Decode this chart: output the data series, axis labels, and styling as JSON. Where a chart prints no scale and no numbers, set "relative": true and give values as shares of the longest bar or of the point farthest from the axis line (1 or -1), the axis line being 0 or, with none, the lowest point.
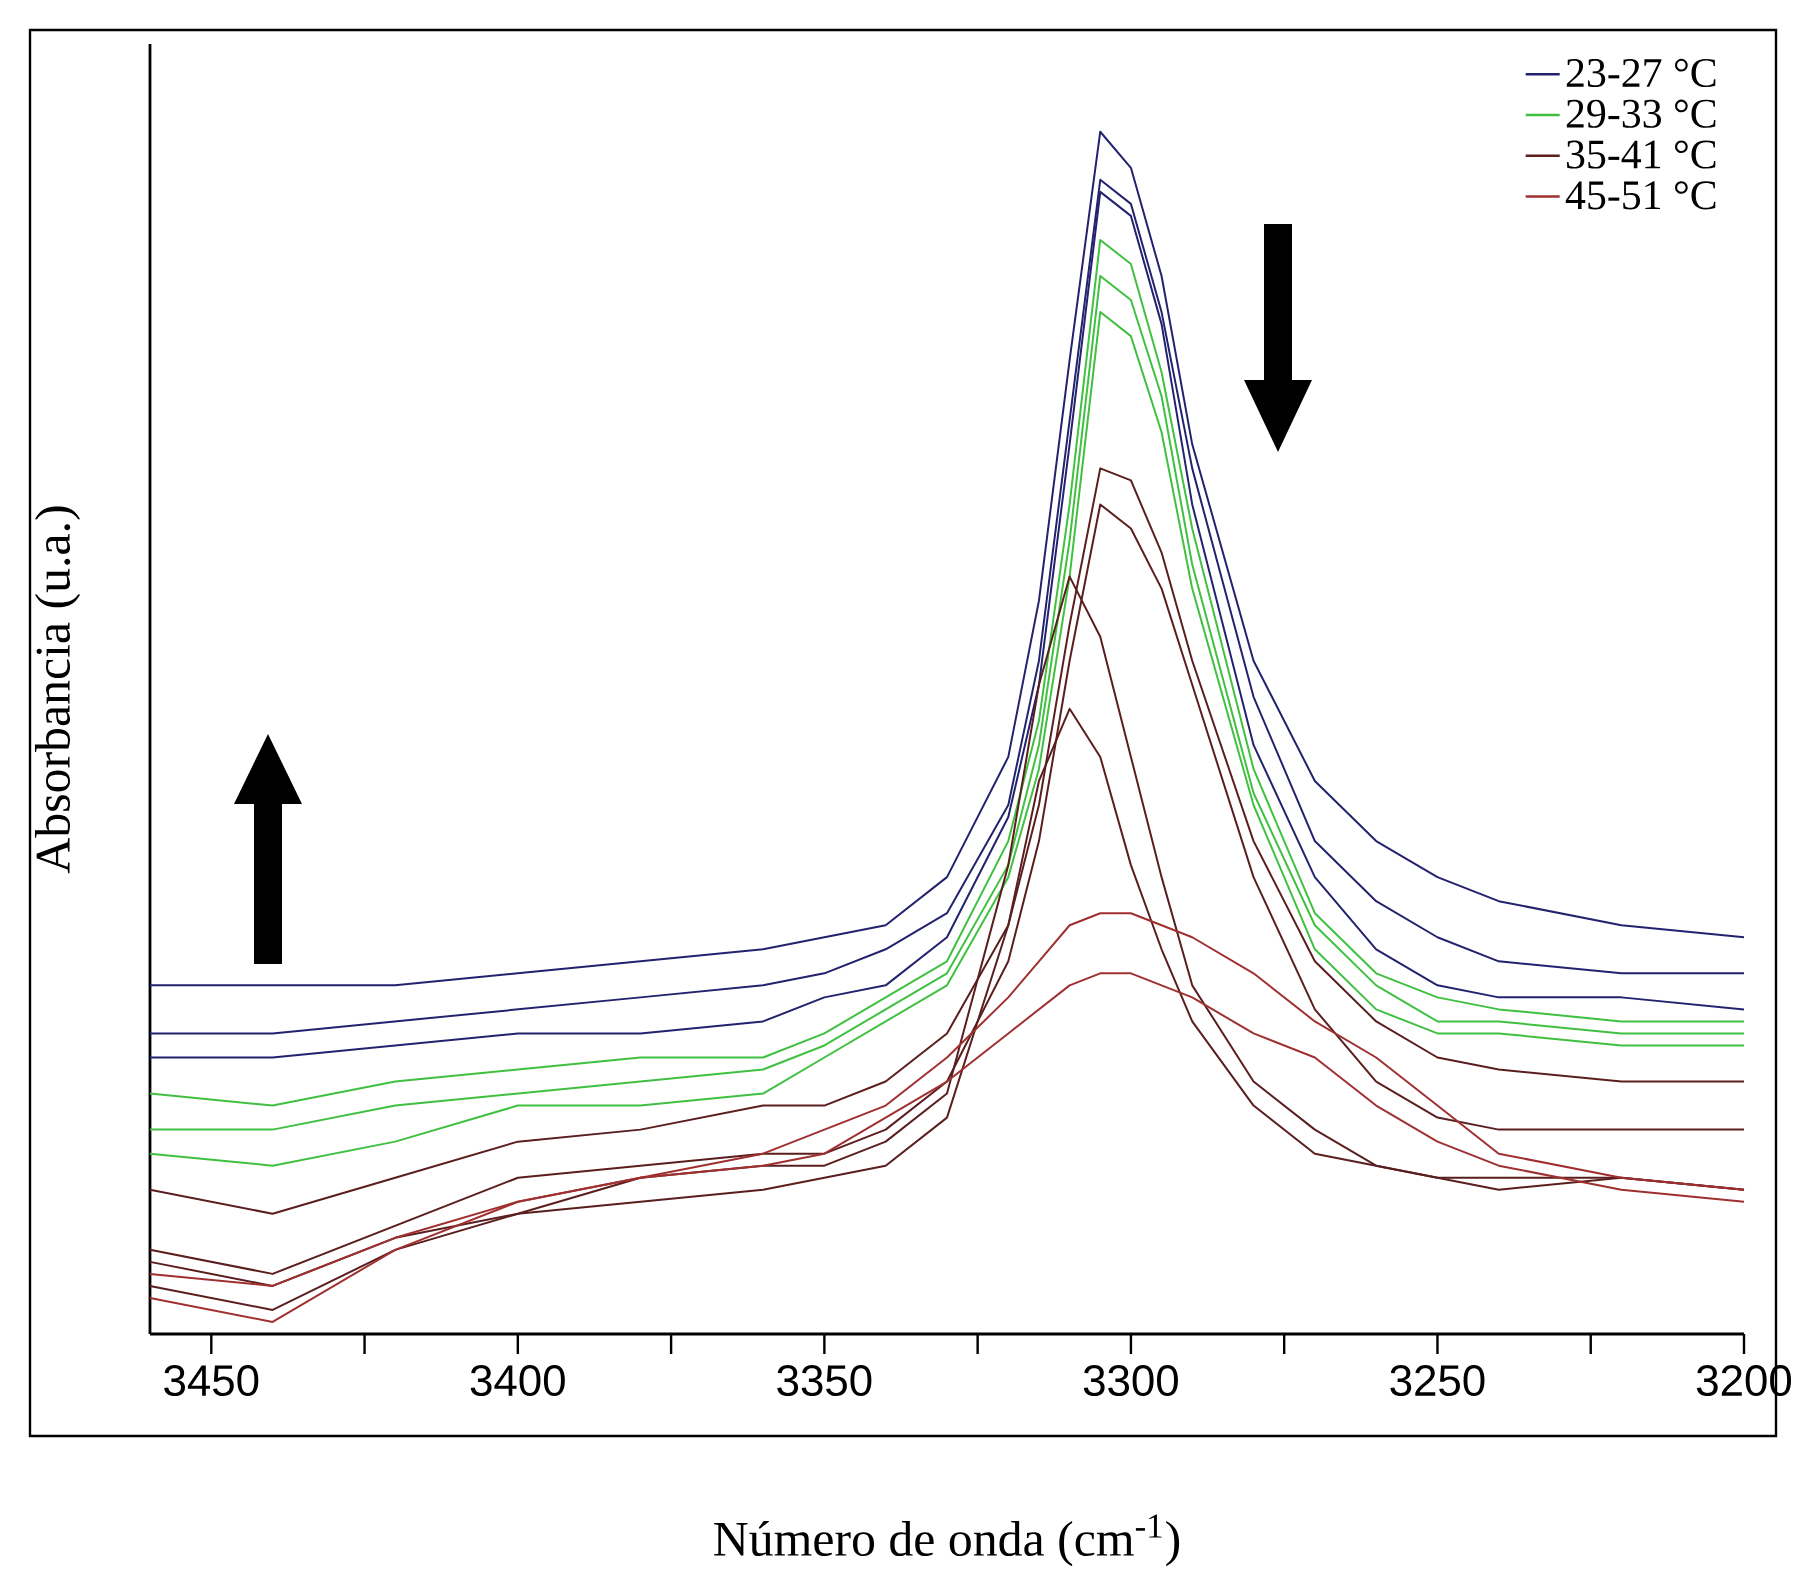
{
  "chart_data": {
    "type": "line",
    "relative": true,
    "xlabel": "Número de onda (cm$^{-1}$)",
    "ylabel": "Absorbancia (u.a.)",
    "xlim": [
      3460,
      3200
    ],
    "xticks": [
      3450,
      {
        "value": 3425,
        "label": null
      },
      3400,
      {
        "value": 3375,
        "label": null
      },
      3350,
      {
        "value": 3325,
        "label": null
      },
      3300,
      {
        "value": 3275,
        "label": null
      },
      3250,
      {
        "value": 3225,
        "label": null
      },
      3200
    ],
    "legend": "top right",
    "x": [
      3460,
      3440,
      3420,
      3400,
      3380,
      3360,
      3350,
      3340,
      3330,
      3320,
      3315,
      3310,
      3305,
      3300,
      3295,
      3290,
      3280,
      3270,
      3260,
      3250,
      3240,
      3220,
      3200
    ],
    "series": [
      {
        "name": "23-27 °C",
        "color": "#22226e",
        "values": [
          0.29,
          0.29,
          0.29,
          0.3,
          0.31,
          0.32,
          0.33,
          0.34,
          0.38,
          0.48,
          0.61,
          0.81,
          1.0,
          0.97,
          0.88,
          0.74,
          0.56,
          0.46,
          0.41,
          0.38,
          0.36,
          0.34,
          0.33
        ]
      },
      {
        "color": "#22226e",
        "values": [
          0.25,
          0.25,
          0.26,
          0.27,
          0.28,
          0.29,
          0.3,
          0.32,
          0.35,
          0.44,
          0.56,
          0.76,
          0.96,
          0.94,
          0.85,
          0.72,
          0.53,
          0.41,
          0.36,
          0.33,
          0.31,
          0.3,
          0.3
        ]
      },
      {
        "color": "#22226e",
        "values": [
          0.23,
          0.23,
          0.24,
          0.25,
          0.25,
          0.26,
          0.28,
          0.29,
          0.33,
          0.43,
          0.54,
          0.74,
          0.95,
          0.93,
          0.84,
          0.69,
          0.49,
          0.38,
          0.32,
          0.29,
          0.28,
          0.28,
          0.27
        ]
      },
      {
        "name": "29-33 °C",
        "color": "#40c040",
        "values": [
          0.2,
          0.19,
          0.21,
          0.22,
          0.23,
          0.23,
          0.25,
          0.28,
          0.31,
          0.41,
          0.51,
          0.69,
          0.91,
          0.89,
          0.8,
          0.67,
          0.47,
          0.35,
          0.3,
          0.28,
          0.27,
          0.26,
          0.26
        ]
      },
      {
        "color": "#40c040",
        "values": [
          0.17,
          0.17,
          0.19,
          0.2,
          0.21,
          0.22,
          0.24,
          0.27,
          0.3,
          0.39,
          0.49,
          0.66,
          0.88,
          0.86,
          0.78,
          0.64,
          0.45,
          0.34,
          0.29,
          0.26,
          0.26,
          0.25,
          0.25
        ]
      },
      {
        "color": "#40c040",
        "values": [
          0.15,
          0.14,
          0.16,
          0.19,
          0.19,
          0.2,
          0.23,
          0.26,
          0.29,
          0.38,
          0.47,
          0.63,
          0.85,
          0.83,
          0.75,
          0.62,
          0.44,
          0.32,
          0.27,
          0.25,
          0.25,
          0.24,
          0.24
        ]
      },
      {
        "name": "35-41 °C",
        "color": "#5a1e1e",
        "values": [
          0.12,
          0.1,
          0.13,
          0.16,
          0.17,
          0.19,
          0.19,
          0.21,
          0.25,
          0.34,
          0.44,
          0.59,
          0.72,
          0.71,
          0.65,
          0.56,
          0.41,
          0.31,
          0.26,
          0.23,
          0.22,
          0.21,
          0.21
        ]
      },
      {
        "color": "#5a1e1e",
        "values": [
          0.07,
          0.05,
          0.09,
          0.13,
          0.14,
          0.15,
          0.15,
          0.17,
          0.21,
          0.31,
          0.41,
          0.56,
          0.69,
          0.67,
          0.62,
          0.54,
          0.38,
          0.27,
          0.21,
          0.18,
          0.17,
          0.17,
          0.17
        ]
      },
      {
        "color": "#5a1e1e",
        "values": [
          0.06,
          0.04,
          0.08,
          0.1,
          0.13,
          0.14,
          0.14,
          0.16,
          0.2,
          0.39,
          0.54,
          0.63,
          0.58,
          0.48,
          0.38,
          0.29,
          0.21,
          0.17,
          0.14,
          0.13,
          0.13,
          0.13,
          0.12
        ]
      },
      {
        "color": "#5a1e1e",
        "values": [
          0.04,
          0.02,
          0.07,
          0.1,
          0.11,
          0.12,
          0.13,
          0.14,
          0.18,
          0.34,
          0.46,
          0.52,
          0.48,
          0.39,
          0.32,
          0.26,
          0.19,
          0.15,
          0.14,
          0.13,
          0.12,
          0.13,
          0.12
        ]
      },
      {
        "name": "45-51 °C",
        "color": "#a03030",
        "values": [
          0.05,
          0.04,
          0.08,
          0.11,
          0.13,
          0.15,
          0.17,
          0.19,
          0.23,
          0.28,
          0.31,
          0.34,
          0.35,
          0.35,
          0.34,
          0.33,
          0.3,
          0.26,
          0.23,
          0.19,
          0.15,
          0.13,
          0.12
        ]
      },
      {
        "color": "#a03030",
        "values": [
          0.03,
          0.01,
          0.07,
          0.11,
          0.13,
          0.14,
          0.15,
          0.18,
          0.21,
          0.25,
          0.27,
          0.29,
          0.3,
          0.3,
          0.29,
          0.28,
          0.25,
          0.23,
          0.19,
          0.16,
          0.14,
          0.12,
          0.11
        ]
      }
    ]
  }
}
